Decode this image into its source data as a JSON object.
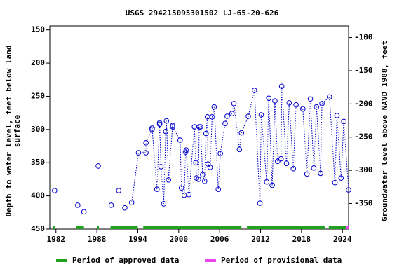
{
  "chart_data": {
    "type": "line",
    "title": "USGS 294215095301502 LJ-65-20-626",
    "ylabel": [
      "Depth to water level, feet below land",
      "surface"
    ],
    "y2label": "Groundwater level above NAVD 1988, feet",
    "xlim": [
      1981.1,
      2024.9
    ],
    "xticks": [
      1982,
      1988,
      1994,
      2000,
      2006,
      2012,
      2018,
      2024
    ],
    "ylim": [
      450,
      144
    ],
    "yticks": [
      150,
      200,
      250,
      300,
      350,
      400,
      450
    ],
    "y2lim": [
      -388.5,
      -82.5
    ],
    "y2ticks": [
      -100,
      -150,
      -200,
      -250,
      -300,
      -350
    ],
    "series": [
      {
        "name": "Depth to water level",
        "color": "#0000cc",
        "x": [
          1981.8,
          null,
          1985.2,
          null,
          1986.1,
          null,
          1988.2,
          null,
          1990.1,
          null,
          1991.2,
          null,
          1992.1,
          null,
          1993.1,
          1994.1,
          1995.2,
          1995.2,
          1996.1,
          1996.1,
          1996.8,
          1997.2,
          1997.2,
          1997.4,
          1997.8,
          1998.1,
          1998.2,
          1998.5,
          1999.1,
          1999.1,
          2000.2,
          2000.4,
          2000.8,
          2001.0,
          2001.1,
          2001.5,
          2002.3,
          2002.5,
          2002.6,
          2002.9,
          2003.0,
          2003.2,
          2003.5,
          2003.8,
          2004.0,
          2004.2,
          2004.3,
          2004.6,
          2004.9,
          2005.2,
          2005.8,
          2006.1,
          2006.8,
          2007.1,
          2007.8,
          2008.1,
          2008.9,
          2009.2,
          2010.2,
          2011.1,
          2011.9,
          2012.1,
          2012.9,
          2013.2,
          2013.7,
          2014.1,
          2014.5,
          2015.0,
          2015.1,
          2015.8,
          2016.2,
          2016.8,
          2017.2,
          2018.2,
          2018.8,
          2019.3,
          2019.8,
          2020.2,
          2020.8,
          2021.0,
          2022.1,
          2022.9,
          2023.2,
          2023.8,
          2024.2,
          2024.9
        ],
        "values": [
          392,
          null,
          414,
          null,
          424,
          null,
          355,
          null,
          414,
          null,
          392,
          null,
          418,
          null,
          410,
          335,
          335,
          320,
          300,
          298,
          390,
          292,
          290,
          356,
          412,
          303,
          287,
          376,
          294,
          296,
          316,
          388,
          399,
          334,
          331,
          398,
          296,
          350,
          373,
          375,
          296,
          296,
          368,
          378,
          306,
          281,
          352,
          357,
          281,
          266,
          390,
          336,
          291,
          280,
          276,
          261,
          330,
          305,
          280,
          241,
          411,
          278,
          379,
          253,
          384,
          257,
          348,
          344,
          235,
          351,
          260,
          359,
          263,
          269,
          367,
          254,
          358,
          266,
          366,
          261,
          251,
          380,
          279,
          373,
          288,
          391
        ]
      }
    ],
    "periods": [
      {
        "name": "Period of approved data",
        "color": "#22a022",
        "spans": [
          [
            1981.6,
            1981.9
          ],
          [
            1984.9,
            1986.1
          ],
          [
            1988.0,
            1988.3
          ],
          [
            1990.0,
            1994.0
          ],
          [
            1994.8,
            2009.2
          ],
          [
            2010.0,
            2021.4
          ],
          [
            2022.0,
            2024.6
          ]
        ]
      },
      {
        "name": "Period of provisional data",
        "color": "#ee44ee",
        "spans": [
          [
            2024.6,
            2024.9
          ]
        ]
      }
    ]
  }
}
